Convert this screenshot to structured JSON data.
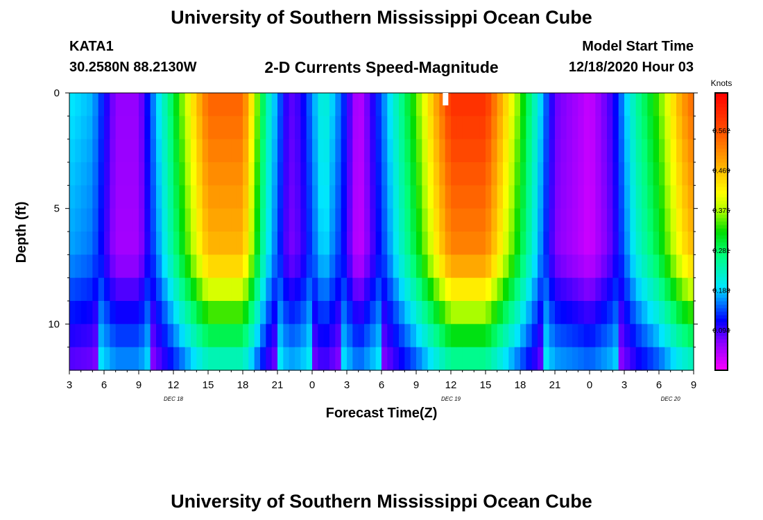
{
  "header": {
    "title_top": "University of Southern Mississippi Ocean Cube",
    "title_bottom": "University of Southern Mississippi Ocean Cube",
    "station": "KATA1",
    "coords": "30.2580N 88.2130W",
    "center_title": "2-D Currents Speed-Magnitude",
    "model_start_label": "Model Start Time",
    "model_start_value": "12/18/2020 Hour 03"
  },
  "chart_data": {
    "type": "heatmap",
    "title": "2-D Currents Speed-Magnitude",
    "xlabel": "Forecast Time(Z)",
    "ylabel": "Depth (ft)",
    "x_ticks": [
      "3",
      "6",
      "9",
      "12",
      "15",
      "18",
      "21",
      "0",
      "3",
      "6",
      "9",
      "12",
      "15",
      "18",
      "21",
      "0",
      "3",
      "6",
      "9"
    ],
    "date_labels": [
      {
        "label": "DEC 18",
        "hour_index": 9
      },
      {
        "label": "DEC 19",
        "hour_index": 33
      },
      {
        "label": "DEC 20",
        "hour_index": 52
      }
    ],
    "time_range_hours": [
      0,
      54
    ],
    "y_ticks": [
      0,
      5,
      10
    ],
    "depth_range_ft": [
      0,
      12
    ],
    "colorbar": {
      "unit_label": "Knots",
      "ticks": [
        0.094,
        0.188,
        0.281,
        0.375,
        0.469,
        0.562
      ],
      "range": [
        0.0,
        0.65
      ]
    },
    "peak_profile": {
      "description_hours": [
        0,
        2,
        3,
        4,
        6,
        9,
        12,
        15,
        17,
        19,
        20,
        22,
        23.5,
        25,
        27,
        30,
        33,
        36,
        39,
        42,
        44,
        45,
        47,
        49,
        51,
        53,
        54
      ],
      "surface_speed_knots": [
        0.2,
        0.18,
        0.12,
        0.06,
        0.06,
        0.3,
        0.55,
        0.55,
        0.25,
        0.08,
        0.1,
        0.23,
        0.15,
        0.03,
        0.15,
        0.35,
        0.6,
        0.6,
        0.35,
        0.08,
        0.05,
        0.03,
        0.1,
        0.25,
        0.35,
        0.5,
        0.55
      ]
    }
  }
}
